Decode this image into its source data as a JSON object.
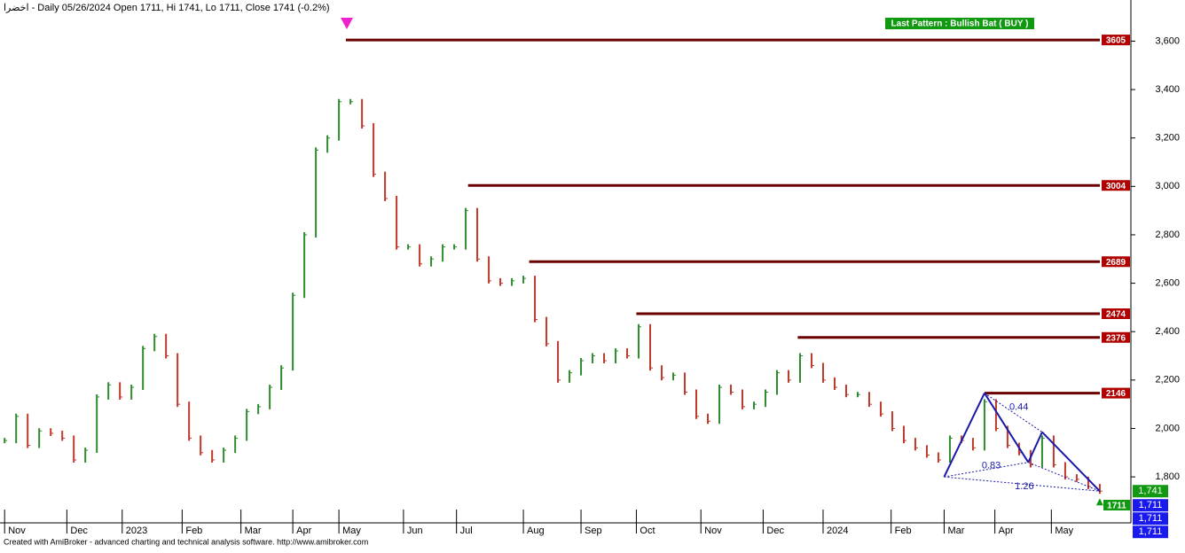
{
  "chart_data": {
    "type": "ohlc",
    "title": "اخضرا - Daily 05/26/2024 Open 1711, Hi 1741, Lo 1711, Close 1741 (-0.2%)",
    "pattern_label": "Last Pattern : Bullish Bat ( BUY )",
    "footer": "Created with AmiBroker - advanced charting and technical analysis software. http://www.amibroker.com",
    "values": [
      1950,
      2050,
      1930,
      1990,
      1980,
      1960,
      1870,
      1910,
      2130,
      2180,
      2130,
      2170,
      2330,
      2380,
      2300,
      2100,
      1960,
      1900,
      1870,
      1910,
      1960,
      2070,
      2090,
      2170,
      2250,
      2550,
      2800,
      3150,
      3200,
      3350,
      3350,
      3250,
      3050,
      2950,
      2750,
      2750,
      2680,
      2700,
      2750,
      2750,
      2900,
      2700,
      2610,
      2600,
      2610,
      2620,
      2450,
      2350,
      2200,
      2230,
      2280,
      2300,
      2280,
      2320,
      2300,
      2420,
      2250,
      2210,
      2220,
      2150,
      2050,
      2030,
      2170,
      2150,
      2090,
      2100,
      2150,
      2230,
      2200,
      2300,
      2260,
      2200,
      2170,
      2140,
      2140,
      2100,
      2060,
      2000,
      1950,
      1920,
      1890,
      1870,
      1960,
      1950,
      1920,
      2110,
      2000,
      1930,
      1900,
      1850,
      1960,
      1850,
      1800,
      1790,
      1760,
      1741
    ],
    "up_color": "#2e8b2e",
    "down_color": "#c0392b",
    "xlim": [
      -0.4,
      97.7
    ],
    "ylim": [
      1610,
      3770
    ],
    "xticks": [
      {
        "value": 0,
        "label": "Nov"
      },
      {
        "value": 5.4,
        "label": "Dec"
      },
      {
        "value": 10.2,
        "label": "2023"
      },
      {
        "value": 15.4,
        "label": "Feb"
      },
      {
        "value": 20.5,
        "label": "Mar"
      },
      {
        "value": 25,
        "label": "Apr"
      },
      {
        "value": 29,
        "label": "May"
      },
      {
        "value": 34.6,
        "label": "Jun"
      },
      {
        "value": 39.2,
        "label": "Jul"
      },
      {
        "value": 45,
        "label": "Aug"
      },
      {
        "value": 50,
        "label": "Sep"
      },
      {
        "value": 54.8,
        "label": "Oct"
      },
      {
        "value": 60.4,
        "label": "Nov"
      },
      {
        "value": 65.8,
        "label": "Dec"
      },
      {
        "value": 71,
        "label": "2024"
      },
      {
        "value": 76.9,
        "label": "Feb"
      },
      {
        "value": 81.5,
        "label": "Mar"
      },
      {
        "value": 85.9,
        "label": "Apr"
      },
      {
        "value": 90.8,
        "label": "May"
      }
    ],
    "yticks": [
      {
        "value": 1800,
        "label": "1,800"
      },
      {
        "value": 2000,
        "label": "2,000"
      },
      {
        "value": 2200,
        "label": "2,200"
      },
      {
        "value": 2400,
        "label": "2,400"
      },
      {
        "value": 2600,
        "label": "2,600"
      },
      {
        "value": 2800,
        "label": "2,800"
      },
      {
        "value": 3000,
        "label": "3,000"
      },
      {
        "value": 3200,
        "label": "3,200"
      },
      {
        "value": 3400,
        "label": "3,400"
      },
      {
        "value": 3600,
        "label": "3,600"
      }
    ],
    "levels": [
      {
        "value": 3605,
        "start": 29.6
      },
      {
        "value": 3004,
        "start": 40.2
      },
      {
        "value": 2689,
        "start": 45.5
      },
      {
        "value": 2474,
        "start": 54.8
      },
      {
        "value": 2376,
        "start": 68.8
      },
      {
        "value": 2146,
        "start": 85
      }
    ],
    "level_color": "#6b0000",
    "pattern": {
      "color": "#1a1aa8",
      "x": [
        81.5,
        85,
        88.8,
        90,
        95
      ],
      "values": [
        1800,
        2146,
        1860,
        1985,
        1741
      ],
      "ratios": [
        "0.44",
        "0.83",
        "1.26"
      ]
    },
    "price_labels": [
      {
        "label": "1,741",
        "value": 1741,
        "color": "#119911"
      },
      {
        "label": "1,711",
        "value": 1711,
        "color": "#1a1aee"
      },
      {
        "label": "1,711",
        "value": 1711,
        "color": "#1a1aee"
      },
      {
        "label": "1,711",
        "value": 1711,
        "color": "#1a1aee"
      }
    ],
    "signal_label": "1711"
  }
}
